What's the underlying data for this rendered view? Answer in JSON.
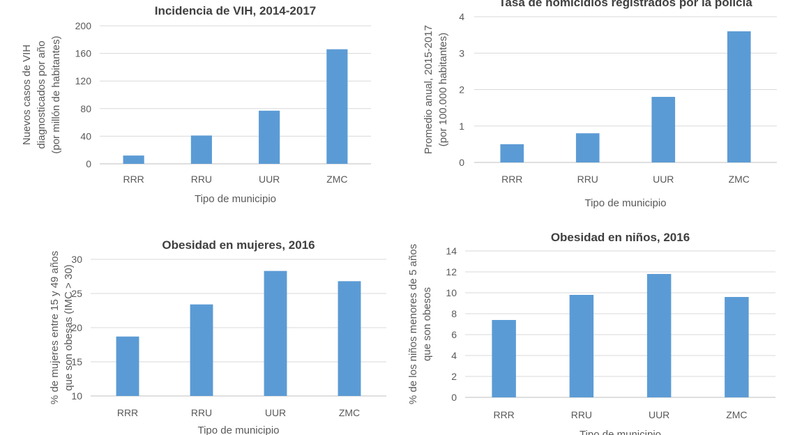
{
  "colors": {
    "bar": "#5b9bd5",
    "grid": "#d9d9d9",
    "text": "#595959",
    "title": "#404040"
  },
  "chart_data": [
    {
      "type": "bar",
      "title": "Incidencia de VIH, 2014-2017",
      "xlabel": "Tipo de municipio",
      "ylabel_lines": [
        "Nuevos casos de VIH",
        "diagnosticados por año",
        "(por millón de habitantes)"
      ],
      "categories": [
        "RRR",
        "RRU",
        "UUR",
        "ZMC"
      ],
      "values": [
        12,
        41,
        77,
        166
      ],
      "ylim": [
        0,
        200
      ],
      "yticks": [
        0,
        40,
        80,
        120,
        160,
        200
      ],
      "grid": true
    },
    {
      "type": "bar",
      "title": "Tasa de homicidios registrados por la policía",
      "xlabel": "Tipo de municipio",
      "ylabel_lines": [
        "Promedio anual, 2015-2017",
        "(por 100.000 habitantes)"
      ],
      "categories": [
        "RRR",
        "RRU",
        "UUR",
        "ZMC"
      ],
      "values": [
        0.5,
        0.8,
        1.8,
        3.6
      ],
      "ylim": [
        0,
        4
      ],
      "yticks": [
        0,
        1,
        2,
        3,
        4
      ],
      "grid": true
    },
    {
      "type": "bar",
      "title": "Obesidad en mujeres, 2016",
      "xlabel": "Tipo de municipio",
      "ylabel_lines": [
        "% de mujeres entre 15 y 49 años",
        "que son obesas (IMC > 30)"
      ],
      "categories": [
        "RRR",
        "RRU",
        "UUR",
        "ZMC"
      ],
      "values": [
        18.7,
        23.4,
        28.3,
        26.8
      ],
      "ylim": [
        10,
        30
      ],
      "yticks": [
        10,
        15,
        20,
        25,
        30
      ],
      "grid": true
    },
    {
      "type": "bar",
      "title": "Obesidad en niños, 2016",
      "xlabel": "Tipo de municipio",
      "ylabel_lines": [
        "% de los niños menores de 5 años",
        "que son obesos"
      ],
      "categories": [
        "RRR",
        "RRU",
        "UUR",
        "ZMC"
      ],
      "values": [
        7.4,
        9.8,
        11.8,
        9.6
      ],
      "ylim": [
        0,
        14
      ],
      "yticks": [
        0,
        2,
        4,
        6,
        8,
        10,
        12,
        14
      ],
      "grid": true
    }
  ]
}
